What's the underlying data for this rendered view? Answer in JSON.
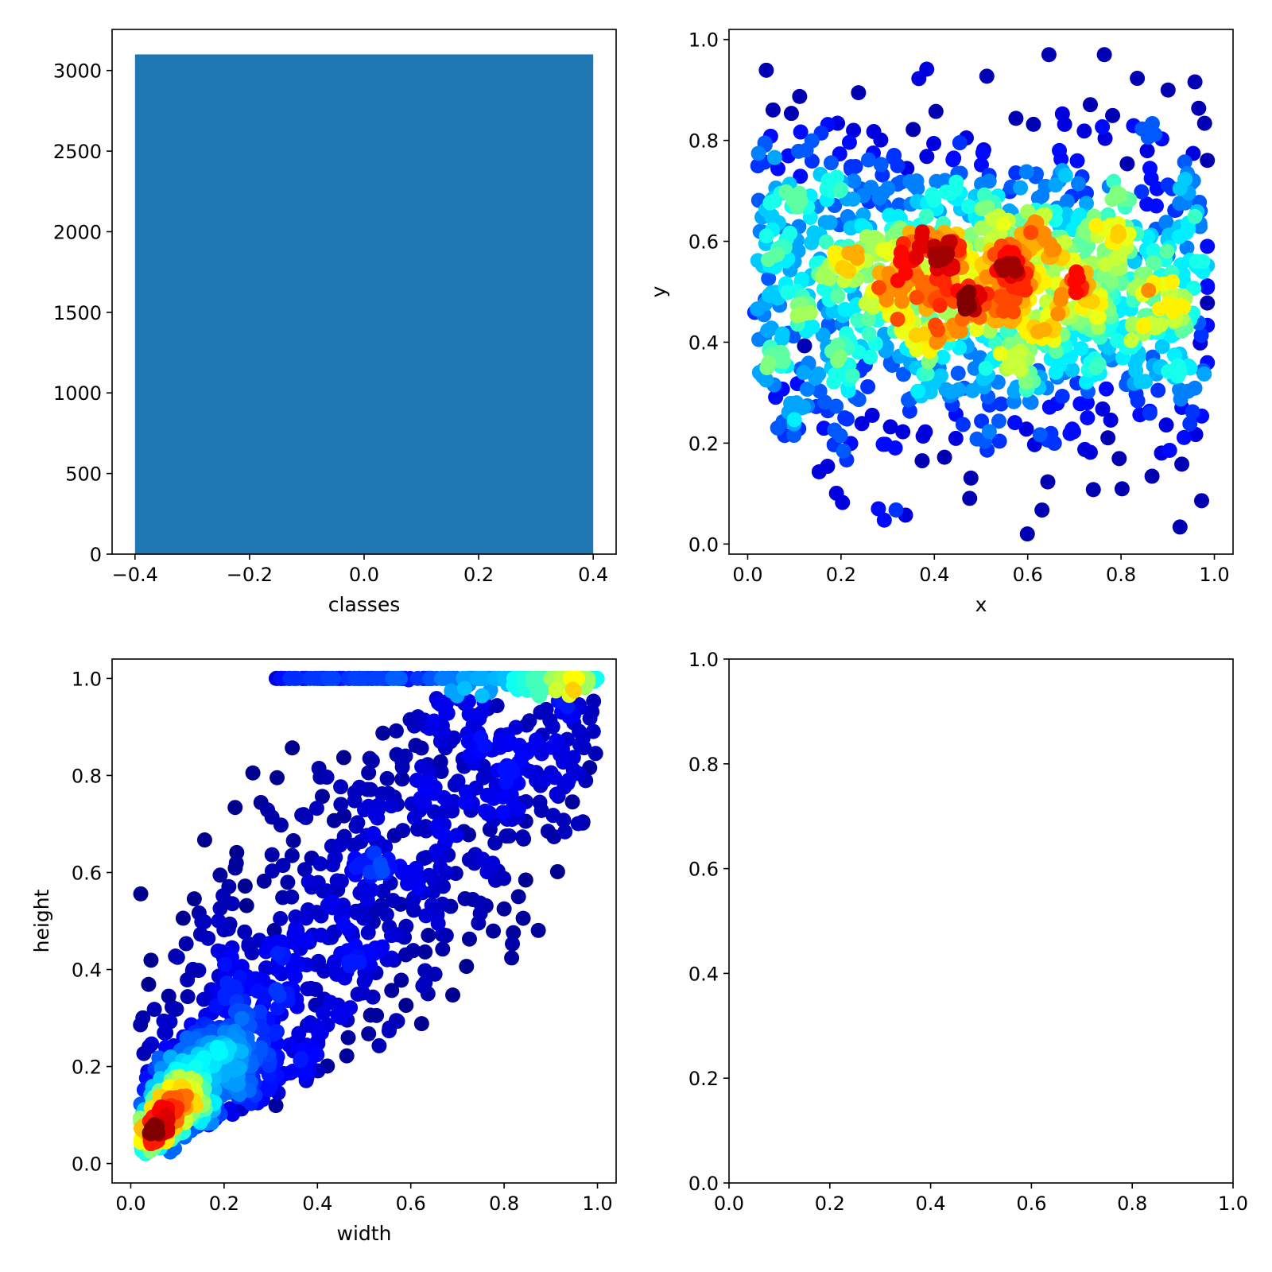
{
  "chart_data": [
    {
      "type": "bar",
      "xlabel": "classes",
      "ylabel": "",
      "bar_color": "#1f77b4",
      "bars": [
        {
          "x_left": -0.4,
          "x_right": 0.4,
          "value": 3100
        }
      ],
      "xlim": [
        -0.44,
        0.44
      ],
      "ylim": [
        0,
        3255
      ],
      "xticks": [
        "−0.4",
        "−0.2",
        "0.0",
        "0.2",
        "0.4"
      ],
      "yticks": [
        "0",
        "500",
        "1000",
        "1500",
        "2000",
        "2500",
        "3000"
      ]
    },
    {
      "type": "scatter",
      "xlabel": "x",
      "ylabel": "y",
      "colormap": "jet",
      "xlim": [
        -0.04,
        1.04
      ],
      "ylim": [
        -0.02,
        1.02
      ],
      "xticks": [
        "0.0",
        "0.2",
        "0.4",
        "0.6",
        "0.8",
        "1.0"
      ],
      "yticks": [
        "0.0",
        "0.2",
        "0.4",
        "0.6",
        "0.8",
        "1.0"
      ],
      "points_description": "≈3100 points, uniform in x over [0.02, 0.98], y concentrated between 0.3 and 0.75, density peak near (0.5, 0.5)"
    },
    {
      "type": "scatter",
      "xlabel": "width",
      "ylabel": "height",
      "colormap": "jet",
      "xlim": [
        -0.04,
        1.04
      ],
      "ylim": [
        -0.04,
        1.04
      ],
      "xticks": [
        "0.0",
        "0.2",
        "0.4",
        "0.6",
        "0.8",
        "1.0"
      ],
      "yticks": [
        "0.0",
        "0.2",
        "0.4",
        "0.6",
        "0.8",
        "1.0"
      ],
      "points_description": "≈3100 points, height positively correlated with width, dense cluster near (0.07, 0.08), clipped band at height 1.0"
    },
    {
      "type": "scatter",
      "xlabel": "",
      "ylabel": "",
      "xlim": [
        0,
        1
      ],
      "ylim": [
        0,
        1
      ],
      "xticks": [
        "0.0",
        "0.2",
        "0.4",
        "0.6",
        "0.8",
        "1.0"
      ],
      "yticks": [
        "0.0",
        "0.2",
        "0.4",
        "0.6",
        "0.8",
        "1.0"
      ],
      "points_description": "empty"
    }
  ]
}
